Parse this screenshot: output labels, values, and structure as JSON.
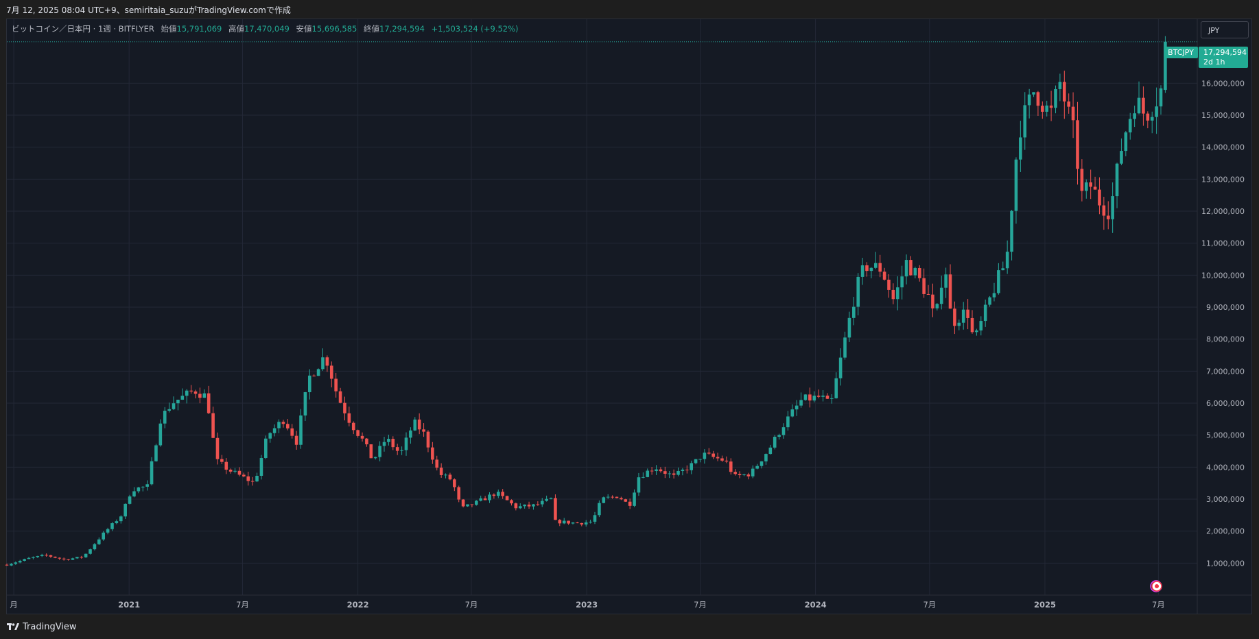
{
  "snapshot_info": "7月 12, 2025 08:04 UTC+9、semiritaia_suzuがTradingView.comで作成",
  "legend": {
    "symbol": "ビットコイン／日本円 · 1週 · BITFLYER",
    "open_label": "始値",
    "open": "15,791,069",
    "high_label": "高値",
    "high": "17,470,049",
    "low_label": "安値",
    "low": "15,696,585",
    "close_label": "終値",
    "close": "17,294,594",
    "change": "+1,503,524 (+9.52%)"
  },
  "currency": "JPY",
  "price_tag": {
    "ticker": "BTCJPY",
    "price": "17,294,594",
    "countdown": "2d 1h"
  },
  "brand": "TradingView",
  "colors": {
    "up": "#26a69a",
    "down": "#ef5350",
    "background": "#151a24",
    "grid": "#232836",
    "text": "#b2b5be",
    "accent": "#22ab94"
  },
  "chart_data": {
    "type": "candlestick",
    "interval": "weekly",
    "x_range": [
      "2020-06-20",
      "2025-09-01"
    ],
    "ylim": [
      0,
      18000000
    ],
    "y_ticks": [
      1000000,
      2000000,
      3000000,
      4000000,
      5000000,
      6000000,
      7000000,
      8000000,
      9000000,
      10000000,
      11000000,
      12000000,
      13000000,
      14000000,
      15000000,
      16000000
    ],
    "y_tick_labels": [
      "1,000,000",
      "2,000,000",
      "3,000,000",
      "4,000,000",
      "5,000,000",
      "6,000,000",
      "7,000,000",
      "8,000,000",
      "9,000,000",
      "10,000,000",
      "11,000,000",
      "12,000,000",
      "13,000,000",
      "14,000,000",
      "15,000,000",
      "16,000,000"
    ],
    "x_ticks": [
      {
        "date": "2020-07-01",
        "label": "月"
      },
      {
        "date": "2021-01-01",
        "label": "2021"
      },
      {
        "date": "2021-07-01",
        "label": "7月"
      },
      {
        "date": "2022-01-01",
        "label": "2022"
      },
      {
        "date": "2022-07-01",
        "label": "7月"
      },
      {
        "date": "2023-01-01",
        "label": "2023"
      },
      {
        "date": "2023-07-01",
        "label": "7月"
      },
      {
        "date": "2024-01-01",
        "label": "2024"
      },
      {
        "date": "2024-07-01",
        "label": "7月"
      },
      {
        "date": "2025-01-01",
        "label": "2025"
      },
      {
        "date": "2025-07-01",
        "label": "7月"
      }
    ],
    "grid": true,
    "last_price_line": 17294594,
    "start_date": "2020-06-20",
    "anchors": [
      [
        "2020-06-20",
        950000
      ],
      [
        "2020-07-25",
        1150000
      ],
      [
        "2020-08-20",
        1250000
      ],
      [
        "2020-09-20",
        1110000
      ],
      [
        "2020-10-20",
        1200000
      ],
      [
        "2020-11-20",
        1900000
      ],
      [
        "2020-12-20",
        2500000
      ],
      [
        "2021-01-05",
        3300000
      ],
      [
        "2021-01-30",
        3400000
      ],
      [
        "2021-02-20",
        5500000
      ],
      [
        "2021-03-10",
        6000000
      ],
      [
        "2021-04-15",
        6400000
      ],
      [
        "2021-05-05",
        6200000
      ],
      [
        "2021-05-20",
        4200000
      ],
      [
        "2021-06-10",
        3900000
      ],
      [
        "2021-06-30",
        3700000
      ],
      [
        "2021-07-20",
        3500000
      ],
      [
        "2021-08-10",
        5000000
      ],
      [
        "2021-09-05",
        5500000
      ],
      [
        "2021-09-25",
        4800000
      ],
      [
        "2021-10-15",
        6800000
      ],
      [
        "2021-11-10",
        7500000
      ],
      [
        "2021-11-30",
        6200000
      ],
      [
        "2021-12-20",
        5400000
      ],
      [
        "2022-01-10",
        4800000
      ],
      [
        "2022-01-25",
        4200000
      ],
      [
        "2022-02-15",
        4900000
      ],
      [
        "2022-03-10",
        4400000
      ],
      [
        "2022-03-31",
        5400000
      ],
      [
        "2022-04-15",
        5100000
      ],
      [
        "2022-05-10",
        3800000
      ],
      [
        "2022-05-31",
        3600000
      ],
      [
        "2022-06-15",
        2700000
      ],
      [
        "2022-07-10",
        2900000
      ],
      [
        "2022-08-10",
        3200000
      ],
      [
        "2022-09-10",
        2750000
      ],
      [
        "2022-10-10",
        2800000
      ],
      [
        "2022-11-05",
        3000000
      ],
      [
        "2022-11-12",
        2300000
      ],
      [
        "2022-12-20",
        2250000
      ],
      [
        "2023-01-10",
        2300000
      ],
      [
        "2023-01-25",
        3000000
      ],
      [
        "2023-02-20",
        3100000
      ],
      [
        "2023-03-10",
        2800000
      ],
      [
        "2023-03-25",
        3700000
      ],
      [
        "2023-04-20",
        4000000
      ],
      [
        "2023-05-20",
        3700000
      ],
      [
        "2023-06-20",
        4100000
      ],
      [
        "2023-07-05",
        4400000
      ],
      [
        "2023-08-10",
        4200000
      ],
      [
        "2023-08-25",
        3700000
      ],
      [
        "2023-09-20",
        3800000
      ],
      [
        "2023-10-20",
        4600000
      ],
      [
        "2023-11-10",
        5300000
      ],
      [
        "2023-12-10",
        6100000
      ],
      [
        "2024-01-10",
        6200000
      ],
      [
        "2024-01-25",
        5900000
      ],
      [
        "2024-02-15",
        7800000
      ],
      [
        "2024-03-05",
        9500000
      ],
      [
        "2024-03-20",
        10300000
      ],
      [
        "2024-04-15",
        10200000
      ],
      [
        "2024-05-05",
        9200000
      ],
      [
        "2024-05-25",
        10400000
      ],
      [
        "2024-06-10",
        10000000
      ],
      [
        "2024-06-30",
        9300000
      ],
      [
        "2024-07-10",
        8500000
      ],
      [
        "2024-07-25",
        10500000
      ],
      [
        "2024-08-05",
        8500000
      ],
      [
        "2024-08-30",
        8900000
      ],
      [
        "2024-09-10",
        7900000
      ],
      [
        "2024-10-10",
        9500000
      ],
      [
        "2024-11-01",
        10500000
      ],
      [
        "2024-11-20",
        14500000
      ],
      [
        "2024-12-15",
        15800000
      ],
      [
        "2025-01-10",
        15000000
      ],
      [
        "2025-01-25",
        16000000
      ],
      [
        "2025-02-15",
        14500000
      ],
      [
        "2025-03-01",
        12500000
      ],
      [
        "2025-03-15",
        12800000
      ],
      [
        "2025-04-01",
        12200000
      ],
      [
        "2025-04-15",
        12000000
      ],
      [
        "2025-05-05",
        14200000
      ],
      [
        "2025-05-25",
        15500000
      ],
      [
        "2025-06-10",
        15000000
      ],
      [
        "2025-06-25",
        15400000
      ],
      [
        "2025-07-05",
        15791069
      ],
      [
        "2025-07-12",
        17294594
      ]
    ]
  }
}
